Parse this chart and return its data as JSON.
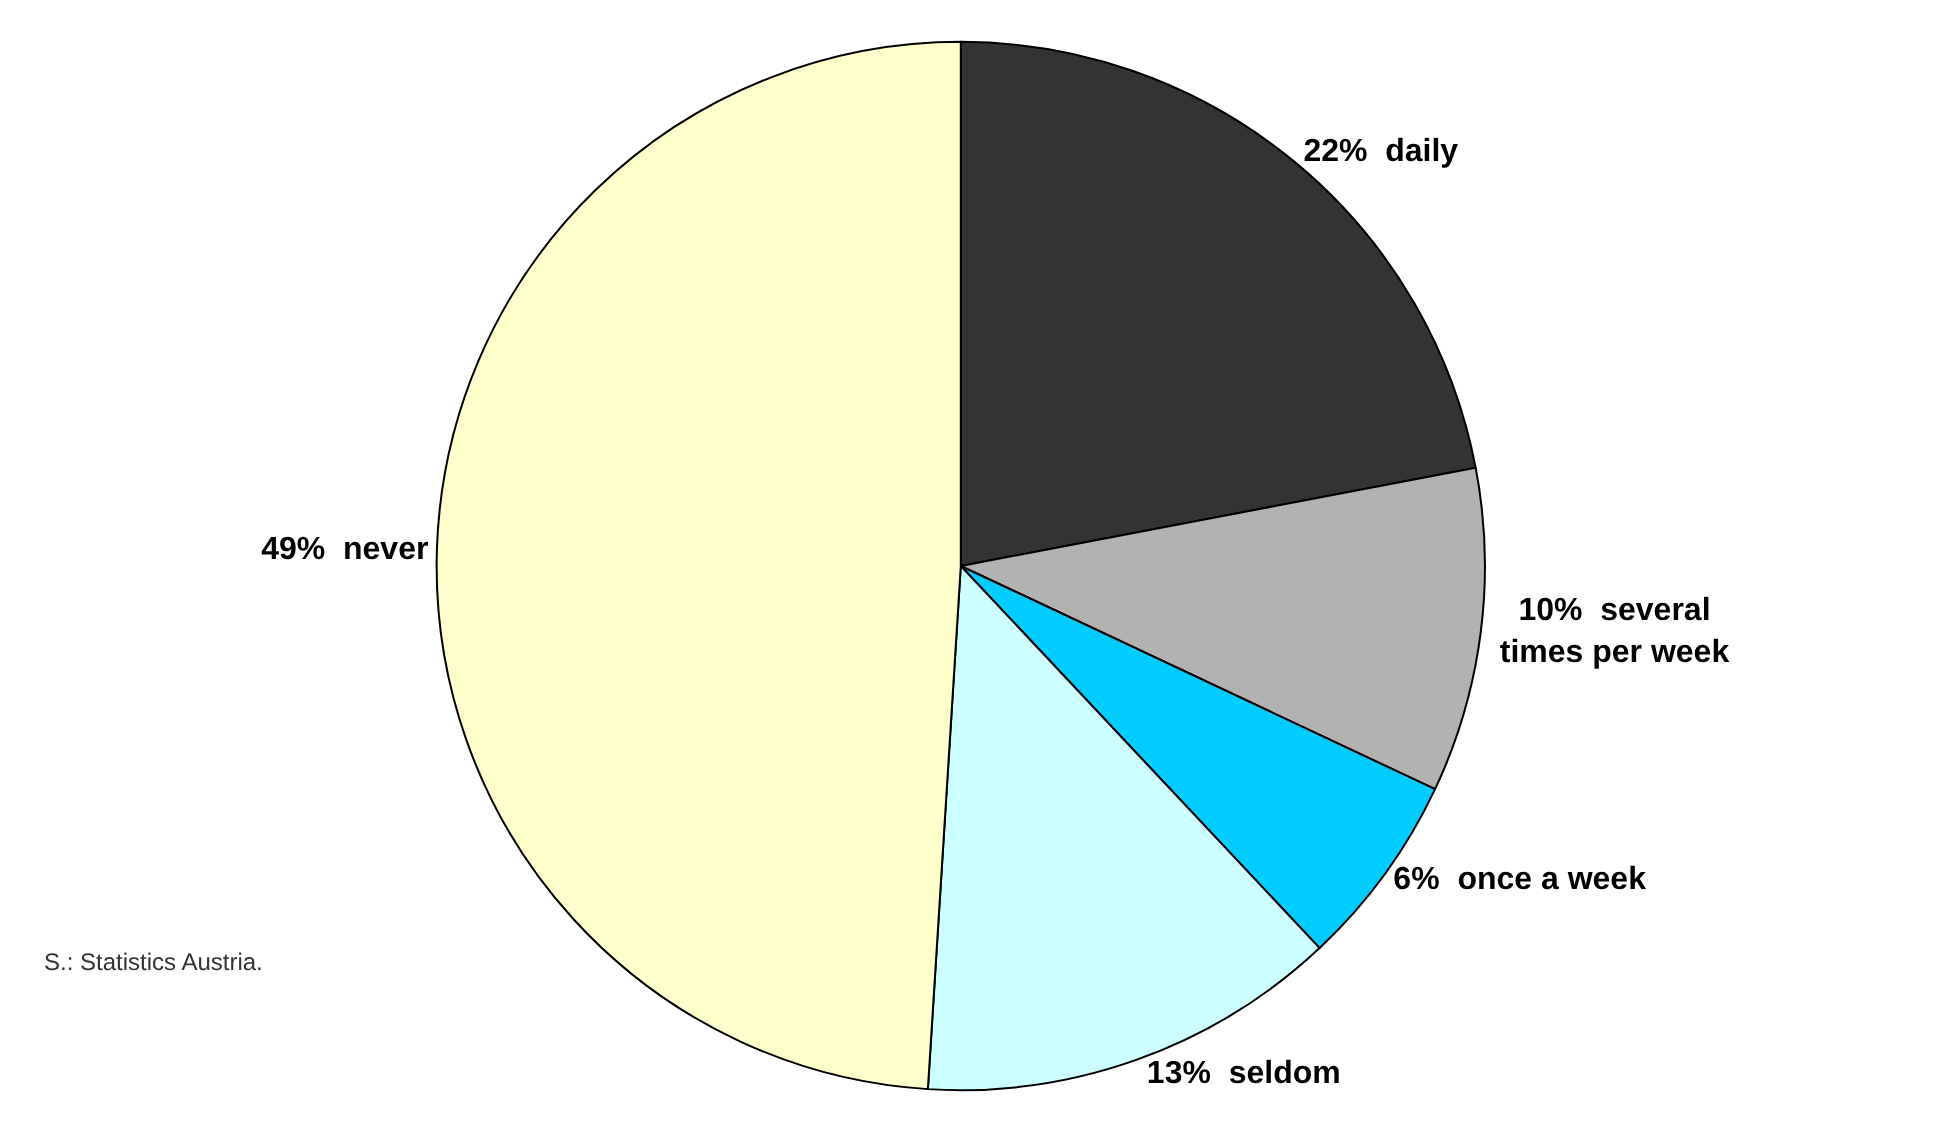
{
  "chart_data": {
    "type": "pie",
    "categories": [
      "22%  daily",
      "10%  several times per week",
      "6%  once a week",
      "13%  seldom",
      "49%  never"
    ],
    "values": [
      22,
      10,
      6,
      13,
      49
    ],
    "colors": [
      "#333333",
      "#b2b2b2",
      "#00ccff",
      "#ccffff",
      "#ffffcc"
    ],
    "annotations": [
      "S.: Statistics Austria."
    ],
    "legend": false
  }
}
